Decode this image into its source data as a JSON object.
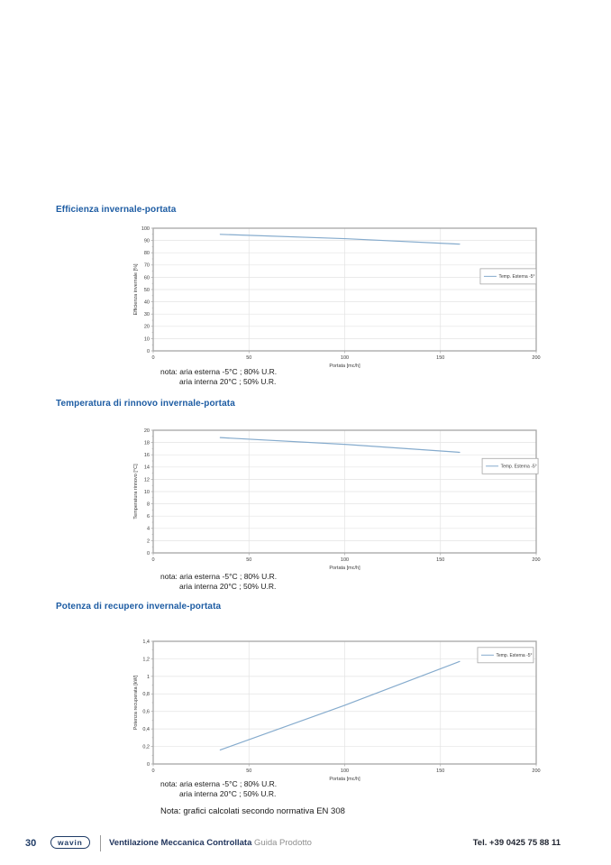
{
  "page": {
    "number": "30",
    "brand": "wavin",
    "footer_title": "Ventilazione Meccanica Controllata",
    "footer_subtitle": "Guida Prodotto",
    "footer_phone": "Tel. +39 0425 75 88 11",
    "final_note": "Nota: grafici calcolati secondo normativa EN 308"
  },
  "colors": {
    "heading": "#1d5ca3",
    "line": "#85abcd",
    "grid": "#e3e3e3",
    "frame": "#a6a6a6",
    "tick_text": "#3a3a3a"
  },
  "sections": [
    {
      "heading": "Efficienza invernale-portata",
      "note_line1": "nota: aria esterna -5°C ; 80% U.R.",
      "note_line2": "aria interna 20°C ; 50% U.R."
    },
    {
      "heading": "Temperatura di rinnovo invernale-portata",
      "note_line1": "nota: aria esterna -5°C ; 80% U.R.",
      "note_line2": "aria interna 20°C ; 50% U.R."
    },
    {
      "heading": "Potenza di recupero invernale-portata",
      "note_line1": "nota: aria esterna -5°C ; 80% U.R.",
      "note_line2": "aria interna 20°C ; 50% U.R."
    }
  ],
  "chart_data": [
    {
      "type": "line",
      "title": "Efficienza invernale-portata",
      "xlabel": "Portata [mc/h]",
      "ylabel": "Efficienza invernale [%]",
      "xlim": [
        0,
        200
      ],
      "ylim": [
        0,
        100
      ],
      "xticks": [
        0,
        50,
        100,
        150,
        200
      ],
      "yticks": [
        0,
        10,
        20,
        30,
        40,
        50,
        60,
        70,
        80,
        90,
        100
      ],
      "grid": true,
      "legend": "Temp. Esterna -5°",
      "legend_position": "middle-right",
      "legend_pos": {
        "x": 0.854,
        "y": 0.33
      },
      "series": [
        {
          "name": "Temp. Esterna -5°",
          "x": [
            35,
            100,
            160
          ],
          "y": [
            95,
            91.5,
            87
          ]
        }
      ]
    },
    {
      "type": "line",
      "title": "Temperatura di rinnovo invernale-portata",
      "xlabel": "Portata [mc/h]",
      "ylabel": "Temperatura rinnovo [°C]",
      "xlim": [
        0,
        200
      ],
      "ylim": [
        0,
        20
      ],
      "xticks": [
        0,
        50,
        100,
        150,
        200
      ],
      "yticks": [
        0,
        2,
        4,
        6,
        8,
        10,
        12,
        14,
        16,
        18,
        20
      ],
      "grid": true,
      "legend": "Temp. Esterna -5°",
      "legend_position": "middle-right",
      "legend_pos": {
        "x": 0.859,
        "y": 0.23
      },
      "series": [
        {
          "name": "Temp. Esterna -5°",
          "x": [
            35,
            100,
            160
          ],
          "y": [
            18.8,
            17.7,
            16.4
          ]
        }
      ]
    },
    {
      "type": "line",
      "title": "Potenza di recupero invernale-portata",
      "xlabel": "Portata [mc/h]",
      "ylabel": "Potenza recuperata [kW]",
      "xlim": [
        0,
        200
      ],
      "ylim": [
        0,
        1.4
      ],
      "xticks": [
        0,
        50,
        100,
        150,
        200
      ],
      "yticks": [
        0,
        0.2,
        0.4,
        0.6,
        0.8,
        1,
        1.2,
        1.4
      ],
      "ytick_labels": [
        "0",
        "0,2",
        "0,4",
        "0,6",
        "0,8",
        "1",
        "1,2",
        "1,4"
      ],
      "grid": true,
      "legend": "Temp. Esterna -5°",
      "legend_position": "top-right",
      "legend_pos": {
        "x": 0.847,
        "y": 0.05
      },
      "series": [
        {
          "name": "Temp. Esterna -5°",
          "x": [
            35,
            100,
            160
          ],
          "y": [
            0.16,
            0.67,
            1.17
          ]
        }
      ]
    }
  ]
}
